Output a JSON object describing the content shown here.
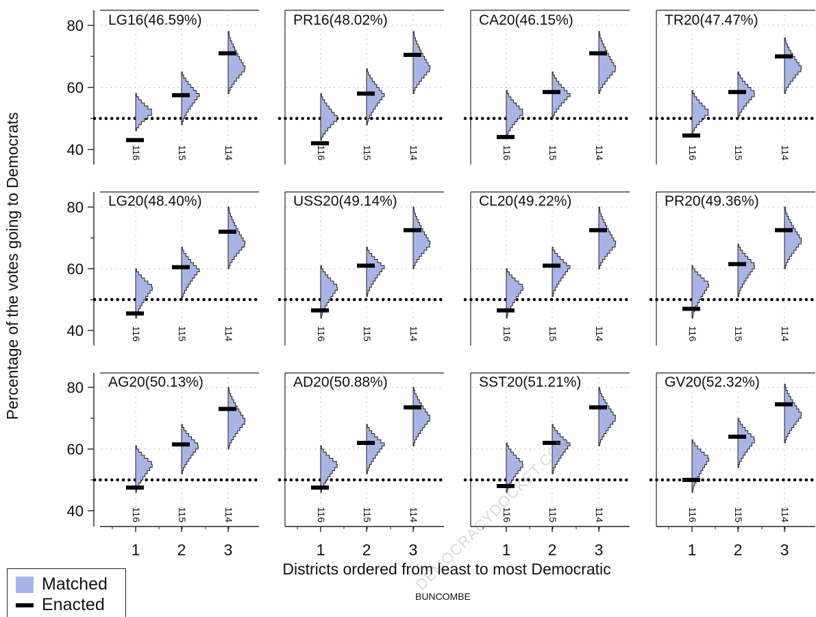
{
  "chart_data": {
    "type": "histogram-panels",
    "ylabel": "Percentage of the votes going to Democrats",
    "xlabel": "Districts ordered from least to most Democratic",
    "county": "BUNCOMBE",
    "watermark": "DEMOCRACYDOCKET.COM",
    "ylim": [
      38,
      85
    ],
    "yticks": [
      40,
      60,
      80
    ],
    "xticks": [
      "1",
      "2",
      "3"
    ],
    "reference_line": 50,
    "legend": [
      {
        "label": "Matched",
        "color": "#a9b4e6"
      },
      {
        "label": "Enacted",
        "color": "#000000"
      }
    ],
    "panels": [
      {
        "title": "LG16(46.59%)",
        "districts": [
          "116",
          "115",
          "114"
        ],
        "matched_range": [
          [
            46,
            58
          ],
          [
            48,
            65
          ],
          [
            58,
            78
          ]
        ],
        "matched_mode": [
          52,
          57.5,
          66
        ],
        "enacted": [
          43,
          57.5,
          71
        ]
      },
      {
        "title": "PR16(48.02%)",
        "districts": [
          "116",
          "115",
          "114"
        ],
        "matched_range": [
          [
            43,
            58
          ],
          [
            48,
            66
          ],
          [
            58,
            78
          ]
        ],
        "matched_mode": [
          50,
          57.5,
          66
        ],
        "enacted": [
          42,
          58,
          70.5
        ]
      },
      {
        "title": "CA20(46.15%)",
        "districts": [
          "116",
          "115",
          "114"
        ],
        "matched_range": [
          [
            44,
            59
          ],
          [
            50,
            65
          ],
          [
            58,
            78
          ]
        ],
        "matched_mode": [
          52,
          57.5,
          66
        ],
        "enacted": [
          44,
          58.5,
          71
        ]
      },
      {
        "title": "TR20(47.47%)",
        "districts": [
          "116",
          "115",
          "114"
        ],
        "matched_range": [
          [
            45,
            59
          ],
          [
            50,
            65
          ],
          [
            58,
            76
          ]
        ],
        "matched_mode": [
          52,
          58,
          66
        ],
        "enacted": [
          44.5,
          58.5,
          70
        ]
      },
      {
        "title": "LG20(48.40%)",
        "districts": [
          "116",
          "115",
          "114"
        ],
        "matched_range": [
          [
            44,
            60
          ],
          [
            50,
            67
          ],
          [
            60,
            80
          ]
        ],
        "matched_mode": [
          54,
          59.5,
          68
        ],
        "enacted": [
          45.5,
          60.5,
          72
        ]
      },
      {
        "title": "USS20(49.14%)",
        "districts": [
          "116",
          "115",
          "114"
        ],
        "matched_range": [
          [
            44,
            61
          ],
          [
            51,
            67
          ],
          [
            60,
            80
          ]
        ],
        "matched_mode": [
          54,
          60.5,
          68
        ],
        "enacted": [
          46.5,
          61,
          72.5
        ]
      },
      {
        "title": "CL20(49.22%)",
        "districts": [
          "116",
          "115",
          "114"
        ],
        "matched_range": [
          [
            44,
            60
          ],
          [
            51,
            67
          ],
          [
            60,
            80
          ]
        ],
        "matched_mode": [
          54,
          60.5,
          68
        ],
        "enacted": [
          46.5,
          61,
          72.5
        ]
      },
      {
        "title": "PR20(49.36%)",
        "districts": [
          "116",
          "115",
          "114"
        ],
        "matched_range": [
          [
            44,
            61
          ],
          [
            51,
            68
          ],
          [
            60,
            80
          ]
        ],
        "matched_mode": [
          55,
          61,
          69
        ],
        "enacted": [
          47,
          61.5,
          72.5
        ]
      },
      {
        "title": "AG20(50.13%)",
        "districts": [
          "116",
          "115",
          "114"
        ],
        "matched_range": [
          [
            46,
            61
          ],
          [
            52,
            68
          ],
          [
            60,
            80
          ]
        ],
        "matched_mode": [
          55,
          61,
          69
        ],
        "enacted": [
          47.5,
          61.5,
          73
        ]
      },
      {
        "title": "AD20(50.88%)",
        "districts": [
          "116",
          "115",
          "114"
        ],
        "matched_range": [
          [
            46,
            61
          ],
          [
            52,
            68
          ],
          [
            61,
            80
          ]
        ],
        "matched_mode": [
          55,
          61.5,
          70
        ],
        "enacted": [
          47.5,
          62,
          73.5
        ]
      },
      {
        "title": "SST20(51.21%)",
        "districts": [
          "116",
          "115",
          "114"
        ],
        "matched_range": [
          [
            46,
            62
          ],
          [
            52,
            68
          ],
          [
            61,
            80
          ]
        ],
        "matched_mode": [
          55,
          61.5,
          70
        ],
        "enacted": [
          48,
          62,
          73.5
        ]
      },
      {
        "title": "GV20(52.32%)",
        "districts": [
          "116",
          "115",
          "114"
        ],
        "matched_range": [
          [
            46,
            63
          ],
          [
            54,
            70
          ],
          [
            62,
            81
          ]
        ],
        "matched_mode": [
          57,
          63,
          71
        ],
        "enacted": [
          50,
          64,
          74.5
        ]
      }
    ]
  }
}
